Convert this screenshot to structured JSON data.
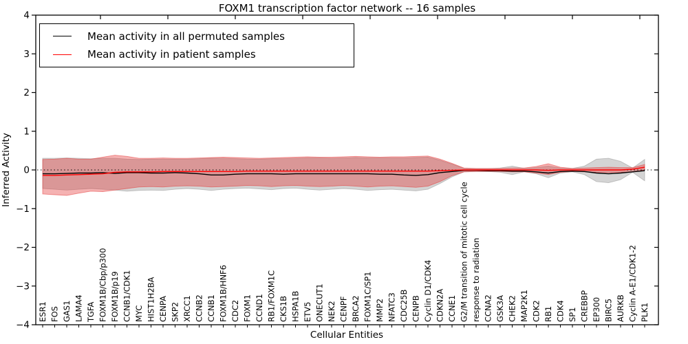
{
  "title": "FOXM1 transcription factor network -- 16 samples",
  "legend": {
    "permuted_label": "Mean activity in all permuted samples",
    "patient_label": "Mean activity in patient samples"
  },
  "axes": {
    "x_label": "Cellular Entities",
    "y_label": "Inferred Activity"
  },
  "colors": {
    "permuted_line": "#000000",
    "patient_line": "#ff0000",
    "permuted_band": "#999999",
    "patient_band": "#e53535",
    "axis": "#000000"
  },
  "chart_data": {
    "type": "line",
    "title": "FOXM1 transcription factor network -- 16 samples",
    "xlabel": "Cellular Entities",
    "ylabel": "Inferred Activity",
    "ylim": [
      -4,
      4
    ],
    "yticks": [
      -4,
      -3,
      -2,
      -1,
      0,
      1,
      2,
      3,
      4
    ],
    "zero_reference_line": true,
    "grid": false,
    "legend_position": "upper-left",
    "categories": [
      "ESR1",
      "FOS",
      "GAS1",
      "LAMA4",
      "TGFA",
      "FOXM1B/Cbp/p300",
      "FOXM1B/p19",
      "CCNB1/CDK1",
      "MYC",
      "HIST1H2BA",
      "CENPA",
      "SKP2",
      "XRCC1",
      "CCNB2",
      "CCNB1",
      "FOXM1B/HNF6",
      "CDC2",
      "FOXM1",
      "CCND1",
      "RB1/FOXM1C",
      "CKS1B",
      "HSPA1B",
      "ETV5",
      "ONECUT1",
      "NEK2",
      "CENPF",
      "BRCA2",
      "FOXM1C/SP1",
      "MMP2",
      "NFATC3",
      "CDC25B",
      "CENPB",
      "Cyclin D1/CDK4",
      "CDKN2A",
      "CCNE1",
      "G2/M transition of mitotic cell cycle",
      "response to radiation",
      "CCNA2",
      "GSK3A",
      "CHEK2",
      "MAP2K1",
      "CDK2",
      "RB1",
      "CDK4",
      "SP1",
      "CREBBP",
      "EP300",
      "BIRC5",
      "AURKB",
      "Cyclin A-E1/CDK1-2",
      "PLK1"
    ],
    "series": [
      {
        "name": "Mean activity in all permuted samples",
        "color": "#000000",
        "values": [
          -0.1,
          -0.1,
          -0.09,
          -0.08,
          -0.08,
          -0.07,
          -0.09,
          -0.07,
          -0.07,
          -0.08,
          -0.08,
          -0.07,
          -0.08,
          -0.1,
          -0.13,
          -0.13,
          -0.11,
          -0.1,
          -0.1,
          -0.1,
          -0.11,
          -0.1,
          -0.1,
          -0.1,
          -0.1,
          -0.1,
          -0.1,
          -0.1,
          -0.11,
          -0.11,
          -0.13,
          -0.14,
          -0.12,
          -0.07,
          -0.04,
          -0.01,
          -0.01,
          -0.02,
          -0.02,
          -0.03,
          -0.03,
          -0.05,
          -0.08,
          -0.04,
          -0.03,
          -0.04,
          -0.08,
          -0.1,
          -0.08,
          -0.05,
          -0.02
        ]
      },
      {
        "name": "Mean activity in patient samples",
        "color": "#ff0000",
        "values": [
          -0.14,
          -0.14,
          -0.13,
          -0.12,
          -0.11,
          -0.1,
          -0.06,
          -0.05,
          -0.05,
          -0.05,
          -0.04,
          -0.04,
          -0.04,
          -0.04,
          -0.04,
          -0.04,
          -0.04,
          -0.03,
          -0.03,
          -0.03,
          -0.03,
          -0.03,
          -0.03,
          -0.03,
          -0.03,
          -0.03,
          -0.03,
          -0.03,
          -0.03,
          -0.03,
          -0.03,
          -0.03,
          -0.03,
          -0.02,
          -0.01,
          0.0,
          0.0,
          0.0,
          0.0,
          0.0,
          0.0,
          0.0,
          -0.01,
          0.0,
          0.0,
          0.0,
          0.0,
          0.0,
          0.0,
          0.02,
          0.07
        ]
      }
    ],
    "bands": [
      {
        "name": "permuted-samples-range",
        "color": "#999999",
        "opacity": 0.42,
        "hi": [
          0.3,
          0.3,
          0.31,
          0.3,
          0.29,
          0.3,
          0.3,
          0.28,
          0.27,
          0.28,
          0.28,
          0.28,
          0.28,
          0.29,
          0.3,
          0.3,
          0.29,
          0.28,
          0.28,
          0.29,
          0.29,
          0.3,
          0.31,
          0.31,
          0.3,
          0.31,
          0.32,
          0.31,
          0.31,
          0.31,
          0.31,
          0.32,
          0.33,
          0.25,
          0.15,
          0.04,
          0.03,
          0.03,
          0.05,
          0.1,
          0.04,
          0.06,
          0.1,
          0.05,
          0.04,
          0.1,
          0.28,
          0.3,
          0.22,
          0.05,
          0.27
        ],
        "lo": [
          -0.48,
          -0.5,
          -0.52,
          -0.5,
          -0.48,
          -0.5,
          -0.52,
          -0.55,
          -0.53,
          -0.52,
          -0.53,
          -0.5,
          -0.48,
          -0.5,
          -0.53,
          -0.5,
          -0.48,
          -0.47,
          -0.49,
          -0.51,
          -0.48,
          -0.47,
          -0.5,
          -0.52,
          -0.5,
          -0.48,
          -0.5,
          -0.53,
          -0.51,
          -0.5,
          -0.52,
          -0.54,
          -0.5,
          -0.35,
          -0.18,
          -0.05,
          -0.04,
          -0.04,
          -0.06,
          -0.12,
          -0.05,
          -0.1,
          -0.2,
          -0.08,
          -0.05,
          -0.12,
          -0.3,
          -0.33,
          -0.25,
          -0.06,
          -0.28
        ]
      },
      {
        "name": "patient-samples-range",
        "color": "#e53535",
        "opacity": 0.38,
        "hi": [
          0.27,
          0.28,
          0.3,
          0.28,
          0.28,
          0.33,
          0.38,
          0.35,
          0.3,
          0.3,
          0.31,
          0.3,
          0.3,
          0.31,
          0.32,
          0.33,
          0.32,
          0.31,
          0.3,
          0.31,
          0.32,
          0.33,
          0.34,
          0.33,
          0.33,
          0.34,
          0.35,
          0.34,
          0.33,
          0.34,
          0.34,
          0.35,
          0.36,
          0.28,
          0.17,
          0.05,
          0.04,
          0.04,
          0.04,
          0.05,
          0.05,
          0.09,
          0.16,
          0.07,
          0.04,
          0.05,
          0.06,
          0.07,
          0.06,
          0.06,
          0.14
        ],
        "lo": [
          -0.62,
          -0.64,
          -0.66,
          -0.6,
          -0.55,
          -0.56,
          -0.52,
          -0.48,
          -0.44,
          -0.43,
          -0.44,
          -0.42,
          -0.41,
          -0.42,
          -0.44,
          -0.43,
          -0.42,
          -0.4,
          -0.41,
          -0.43,
          -0.41,
          -0.4,
          -0.42,
          -0.43,
          -0.42,
          -0.4,
          -0.42,
          -0.44,
          -0.42,
          -0.41,
          -0.43,
          -0.45,
          -0.42,
          -0.3,
          -0.15,
          -0.05,
          -0.04,
          -0.04,
          -0.04,
          -0.05,
          -0.05,
          -0.08,
          -0.12,
          -0.06,
          -0.04,
          -0.05,
          -0.06,
          -0.07,
          -0.06,
          -0.05,
          0.0
        ]
      }
    ]
  }
}
